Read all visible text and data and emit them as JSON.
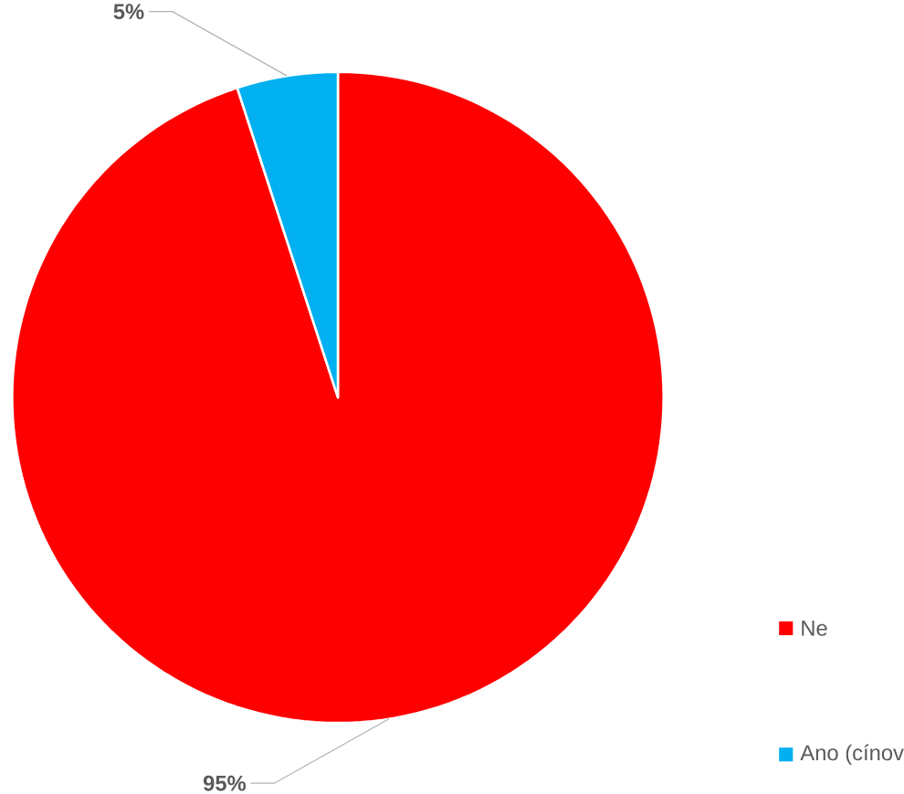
{
  "chart_data": {
    "type": "pie",
    "categories": [
      "Ne",
      "Ano (cínov"
    ],
    "values": [
      95,
      5
    ],
    "colors": [
      "#ff0000",
      "#00b0f0"
    ],
    "value_labels": [
      "95%",
      "5%"
    ],
    "legend": "right"
  }
}
